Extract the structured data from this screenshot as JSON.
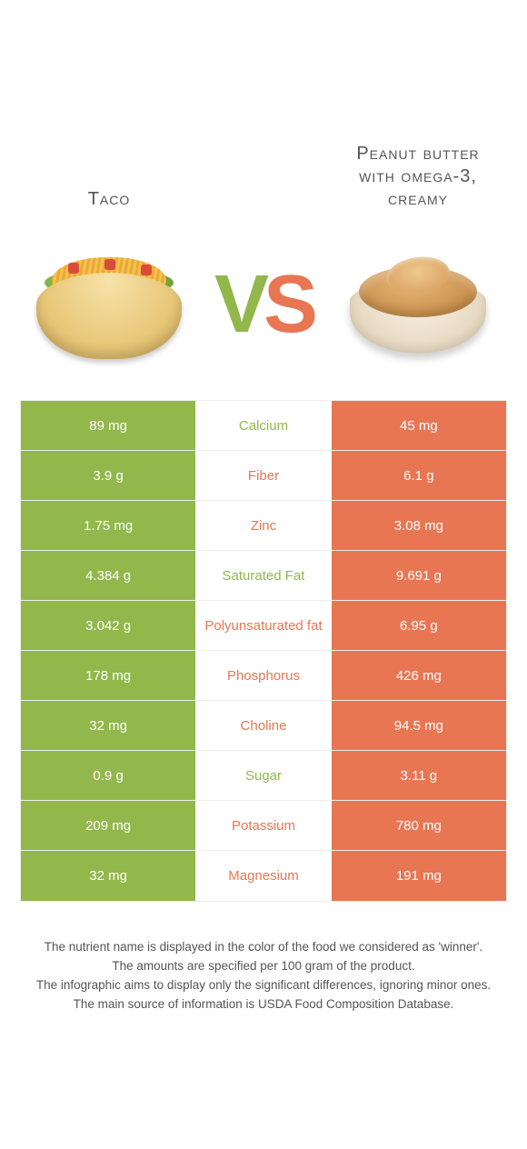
{
  "colors": {
    "left": "#92b74b",
    "right": "#e87653",
    "border": "#eeeeee",
    "background": "#ffffff",
    "text": "#555555",
    "cell_text": "#ffffff"
  },
  "header": {
    "left_title": "Taco",
    "right_title": "Peanut butter with omega-3, creamy",
    "vs_v": "V",
    "vs_s": "S"
  },
  "rows": [
    {
      "nutrient": "Calcium",
      "left": "89 mg",
      "right": "45 mg",
      "winner": "left"
    },
    {
      "nutrient": "Fiber",
      "left": "3.9 g",
      "right": "6.1 g",
      "winner": "right"
    },
    {
      "nutrient": "Zinc",
      "left": "1.75 mg",
      "right": "3.08 mg",
      "winner": "right"
    },
    {
      "nutrient": "Saturated Fat",
      "left": "4.384 g",
      "right": "9.691 g",
      "winner": "left"
    },
    {
      "nutrient": "Polyunsaturated fat",
      "left": "3.042 g",
      "right": "6.95 g",
      "winner": "right"
    },
    {
      "nutrient": "Phosphorus",
      "left": "178 mg",
      "right": "426 mg",
      "winner": "right"
    },
    {
      "nutrient": "Choline",
      "left": "32 mg",
      "right": "94.5 mg",
      "winner": "right"
    },
    {
      "nutrient": "Sugar",
      "left": "0.9 g",
      "right": "3.11 g",
      "winner": "left"
    },
    {
      "nutrient": "Potassium",
      "left": "209 mg",
      "right": "780 mg",
      "winner": "right"
    },
    {
      "nutrient": "Magnesium",
      "left": "32 mg",
      "right": "191 mg",
      "winner": "right"
    }
  ],
  "footnotes": [
    "The nutrient name is displayed in the color of the food we considered as 'winner'.",
    "The amounts are specified per 100 gram of the product.",
    "The infographic aims to display only the significant differences, ignoring minor ones.",
    "The main source of information is USDA Food Composition Database."
  ]
}
